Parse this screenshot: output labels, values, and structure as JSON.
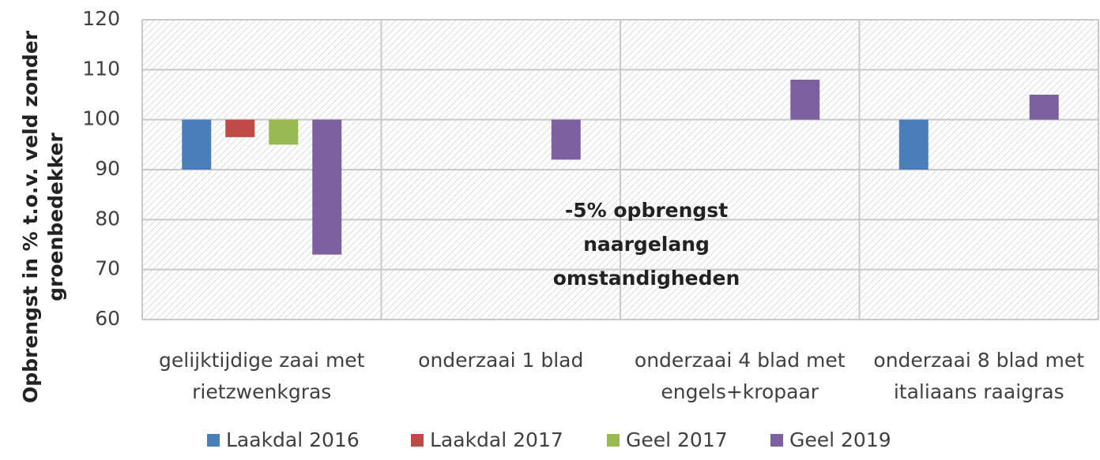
{
  "chart_data": {
    "type": "bar",
    "y_label": [
      "Opbrengst in % t.o.v. veld zonder",
      "groenbedekker"
    ],
    "categories": [
      [
        "gelijktijdige zaai met",
        "rietzwenkgras"
      ],
      [
        "onderzaai 1 blad"
      ],
      [
        "onderzaai 4 blad met",
        "engels+kropaar"
      ],
      [
        "onderzaai 8 blad met",
        "italiaans raaigras"
      ]
    ],
    "series": [
      {
        "name": "Laakdal 2016",
        "color": "#4a7ebb",
        "values": [
          90,
          null,
          null,
          90
        ]
      },
      {
        "name": "Laakdal 2017",
        "color": "#be4b48",
        "values": [
          96.5,
          null,
          null,
          null
        ]
      },
      {
        "name": "Geel 2017",
        "color": "#98b954",
        "values": [
          95,
          null,
          null,
          null
        ]
      },
      {
        "name": "Geel 2019",
        "color": "#7d60a0",
        "values": [
          73,
          92,
          108,
          105
        ]
      }
    ],
    "base": 100,
    "ylim": [
      60,
      120
    ],
    "yticks": [
      60,
      70,
      80,
      90,
      100,
      110,
      120
    ],
    "grid": true,
    "annotation": [
      "-5% opbrengst",
      "naargelang",
      "omstandigheden"
    ],
    "legend": "bottom"
  }
}
